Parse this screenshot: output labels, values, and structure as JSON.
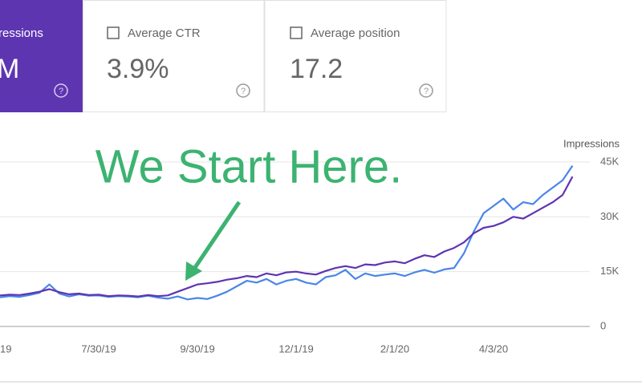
{
  "cards": [
    {
      "label": "ressions",
      "value": "M",
      "selected": true,
      "color": "#5e35b1"
    },
    {
      "label": "Average CTR",
      "value": "3.9%"
    },
    {
      "label": "Average position",
      "value": "17.2"
    }
  ],
  "chart_data": {
    "type": "line",
    "annotation": "We Start Here.",
    "y_label": "Impressions",
    "categories": [
      "19",
      null,
      null,
      null,
      null,
      null,
      null,
      null,
      null,
      null,
      "7/30/19",
      null,
      null,
      null,
      null,
      null,
      null,
      null,
      null,
      null,
      "9/30/19",
      null,
      null,
      null,
      null,
      null,
      null,
      null,
      null,
      null,
      "12/1/19",
      null,
      null,
      null,
      null,
      null,
      null,
      null,
      null,
      null,
      "2/1/20",
      null,
      null,
      null,
      null,
      null,
      null,
      null,
      null,
      null,
      "4/3/20",
      null,
      null,
      null,
      null,
      null,
      null,
      null,
      null
    ],
    "series": [
      {
        "color": "#4a86e8",
        "values": [
          8000,
          8300,
          8100,
          8600,
          9200,
          11500,
          9000,
          8200,
          8800,
          8400,
          8500,
          8100,
          8300,
          8200,
          8000,
          8400,
          7900,
          7600,
          8200,
          7400,
          7800,
          7500,
          8400,
          9500,
          11000,
          12500,
          12000,
          13000,
          11500,
          12500,
          13000,
          12000,
          11500,
          13500,
          14000,
          15500,
          13000,
          14500,
          13800,
          14200,
          14500,
          13800,
          14800,
          15500,
          14700,
          15600,
          16000,
          20000,
          26000,
          31000,
          33000,
          35000,
          32000,
          34000,
          33500,
          36000,
          38000,
          40000,
          44000
        ]
      },
      {
        "color": "#5e35b1",
        "values": [
          8500,
          8700,
          8600,
          9000,
          9500,
          10200,
          9400,
          8800,
          9000,
          8600,
          8700,
          8300,
          8500,
          8400,
          8200,
          8600,
          8300,
          8500,
          9500,
          10500,
          11500,
          11800,
          12200,
          12800,
          13200,
          13800,
          13500,
          14500,
          14000,
          14800,
          15000,
          14500,
          14200,
          15200,
          16000,
          16500,
          16000,
          17000,
          16800,
          17500,
          17800,
          17300,
          18500,
          19500,
          19000,
          20500,
          21500,
          23000,
          25500,
          27000,
          27500,
          28500,
          30000,
          29500,
          31000,
          32500,
          34000,
          36000,
          41000
        ]
      }
    ],
    "ylim": [
      0,
      45000
    ],
    "yticks": [
      0,
      {
        "value": 15000,
        "label": "15K"
      },
      {
        "value": 30000,
        "label": "30K"
      },
      {
        "value": 45000,
        "label": "45K"
      }
    ],
    "grid": true,
    "annotation_color": "#3cb371"
  }
}
